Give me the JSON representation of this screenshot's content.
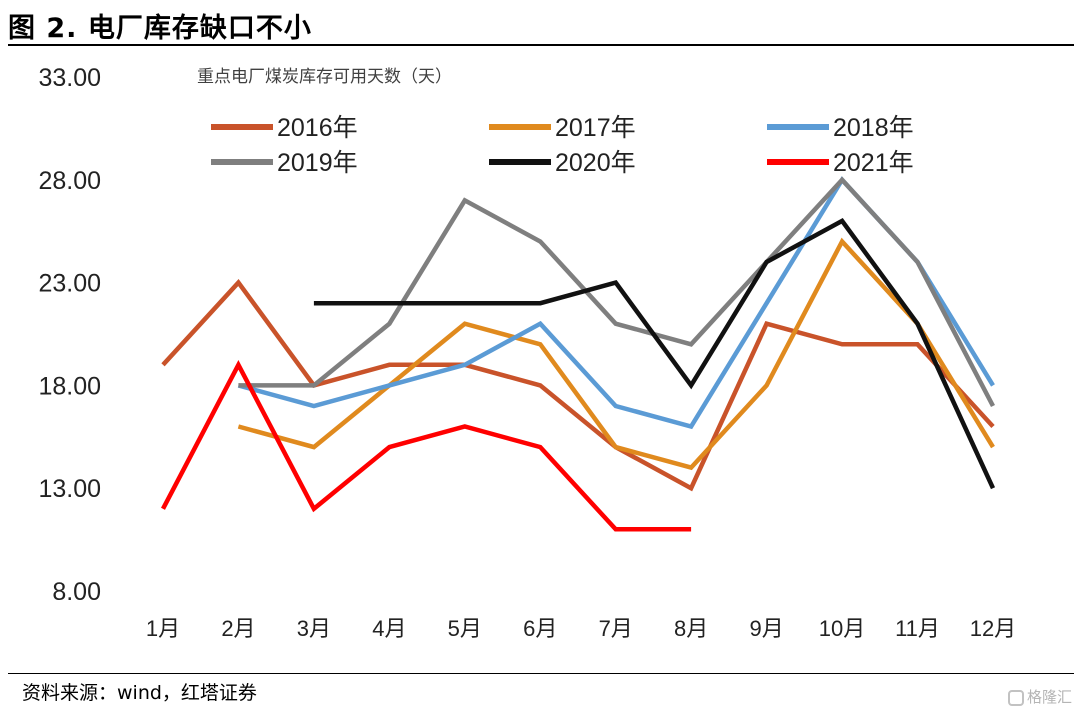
{
  "figure": {
    "title": "图 2. 电厂库存缺口不小",
    "source": "资料来源：wind，红塔证券",
    "watermark": "格隆汇"
  },
  "chart_data": {
    "type": "line",
    "title": "重点电厂煤炭库存可用天数（天）",
    "xlabel": "",
    "ylabel": "",
    "categories": [
      "1月",
      "2月",
      "3月",
      "4月",
      "5月",
      "6月",
      "7月",
      "8月",
      "9月",
      "10月",
      "11月",
      "12月"
    ],
    "ylim": [
      8,
      33
    ],
    "yticks": [
      "33.00",
      "28.00",
      "23.00",
      "18.00",
      "13.00",
      "8.00"
    ],
    "ytick_values": [
      33,
      28,
      23,
      18,
      13,
      8
    ],
    "grid": false,
    "legend_position": "top",
    "series": [
      {
        "name": "2016年",
        "color": "#c9532a",
        "values": [
          19,
          23,
          18,
          19,
          19,
          18,
          15,
          13,
          21,
          20,
          20,
          16
        ]
      },
      {
        "name": "2017年",
        "color": "#e08a1e",
        "values": [
          null,
          16,
          15,
          18,
          21,
          20,
          15,
          14,
          18,
          25,
          21,
          15
        ]
      },
      {
        "name": "2018年",
        "color": "#5b9bd5",
        "values": [
          null,
          18,
          17,
          18,
          19,
          21,
          17,
          16,
          22,
          28,
          24,
          18
        ]
      },
      {
        "name": "2019年",
        "color": "#7f7f7f",
        "values": [
          null,
          18,
          18,
          21,
          27,
          25,
          21,
          20,
          24,
          28,
          24,
          17
        ]
      },
      {
        "name": "2020年",
        "color": "#111111",
        "values": [
          null,
          null,
          22,
          22,
          22,
          22,
          23,
          18,
          24,
          26,
          21,
          13
        ]
      },
      {
        "name": "2021年",
        "color": "#ff0000",
        "values": [
          12,
          19,
          12,
          15,
          16,
          15,
          11,
          11,
          null,
          null,
          null,
          null
        ]
      }
    ]
  }
}
